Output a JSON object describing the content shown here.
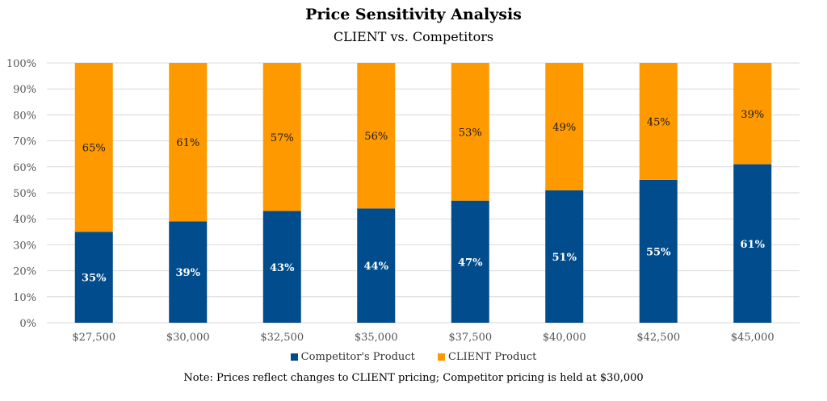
{
  "chart_data": {
    "type": "bar",
    "stacked": true,
    "title": "Price Sensitivity Analysis",
    "subtitle": "CLIENT vs. Competitors",
    "categories": [
      "$27,500",
      "$30,000",
      "$32,500",
      "$35,000",
      "$37,500",
      "$40,000",
      "$42,500",
      "$45,000"
    ],
    "series": [
      {
        "name": "Competitor's Product",
        "color": "#004c8c",
        "label_color": "#ffffff",
        "values": [
          35,
          39,
          43,
          44,
          47,
          51,
          55,
          61
        ],
        "labels": [
          "35%",
          "39%",
          "43%",
          "44%",
          "47%",
          "51%",
          "55%",
          "61%"
        ]
      },
      {
        "name": "CLIENT Product",
        "color": "#ff9900",
        "label_color": "#1a1a1a",
        "values": [
          65,
          61,
          57,
          56,
          53,
          49,
          45,
          39
        ],
        "labels": [
          "65%",
          "61%",
          "57%",
          "56%",
          "53%",
          "49%",
          "45%",
          "39%"
        ]
      }
    ],
    "ylim": [
      0,
      100
    ],
    "yticks": [
      0,
      10,
      20,
      30,
      40,
      50,
      60,
      70,
      80,
      90,
      100
    ],
    "ytick_labels": [
      "0%",
      "10%",
      "20%",
      "30%",
      "40%",
      "50%",
      "60%",
      "70%",
      "80%",
      "90%",
      "100%"
    ],
    "grid": true,
    "legend_position": "bottom",
    "note": "Note:  Prices reflect changes to CLIENT pricing;  Competitor pricing is held at $30,000"
  }
}
